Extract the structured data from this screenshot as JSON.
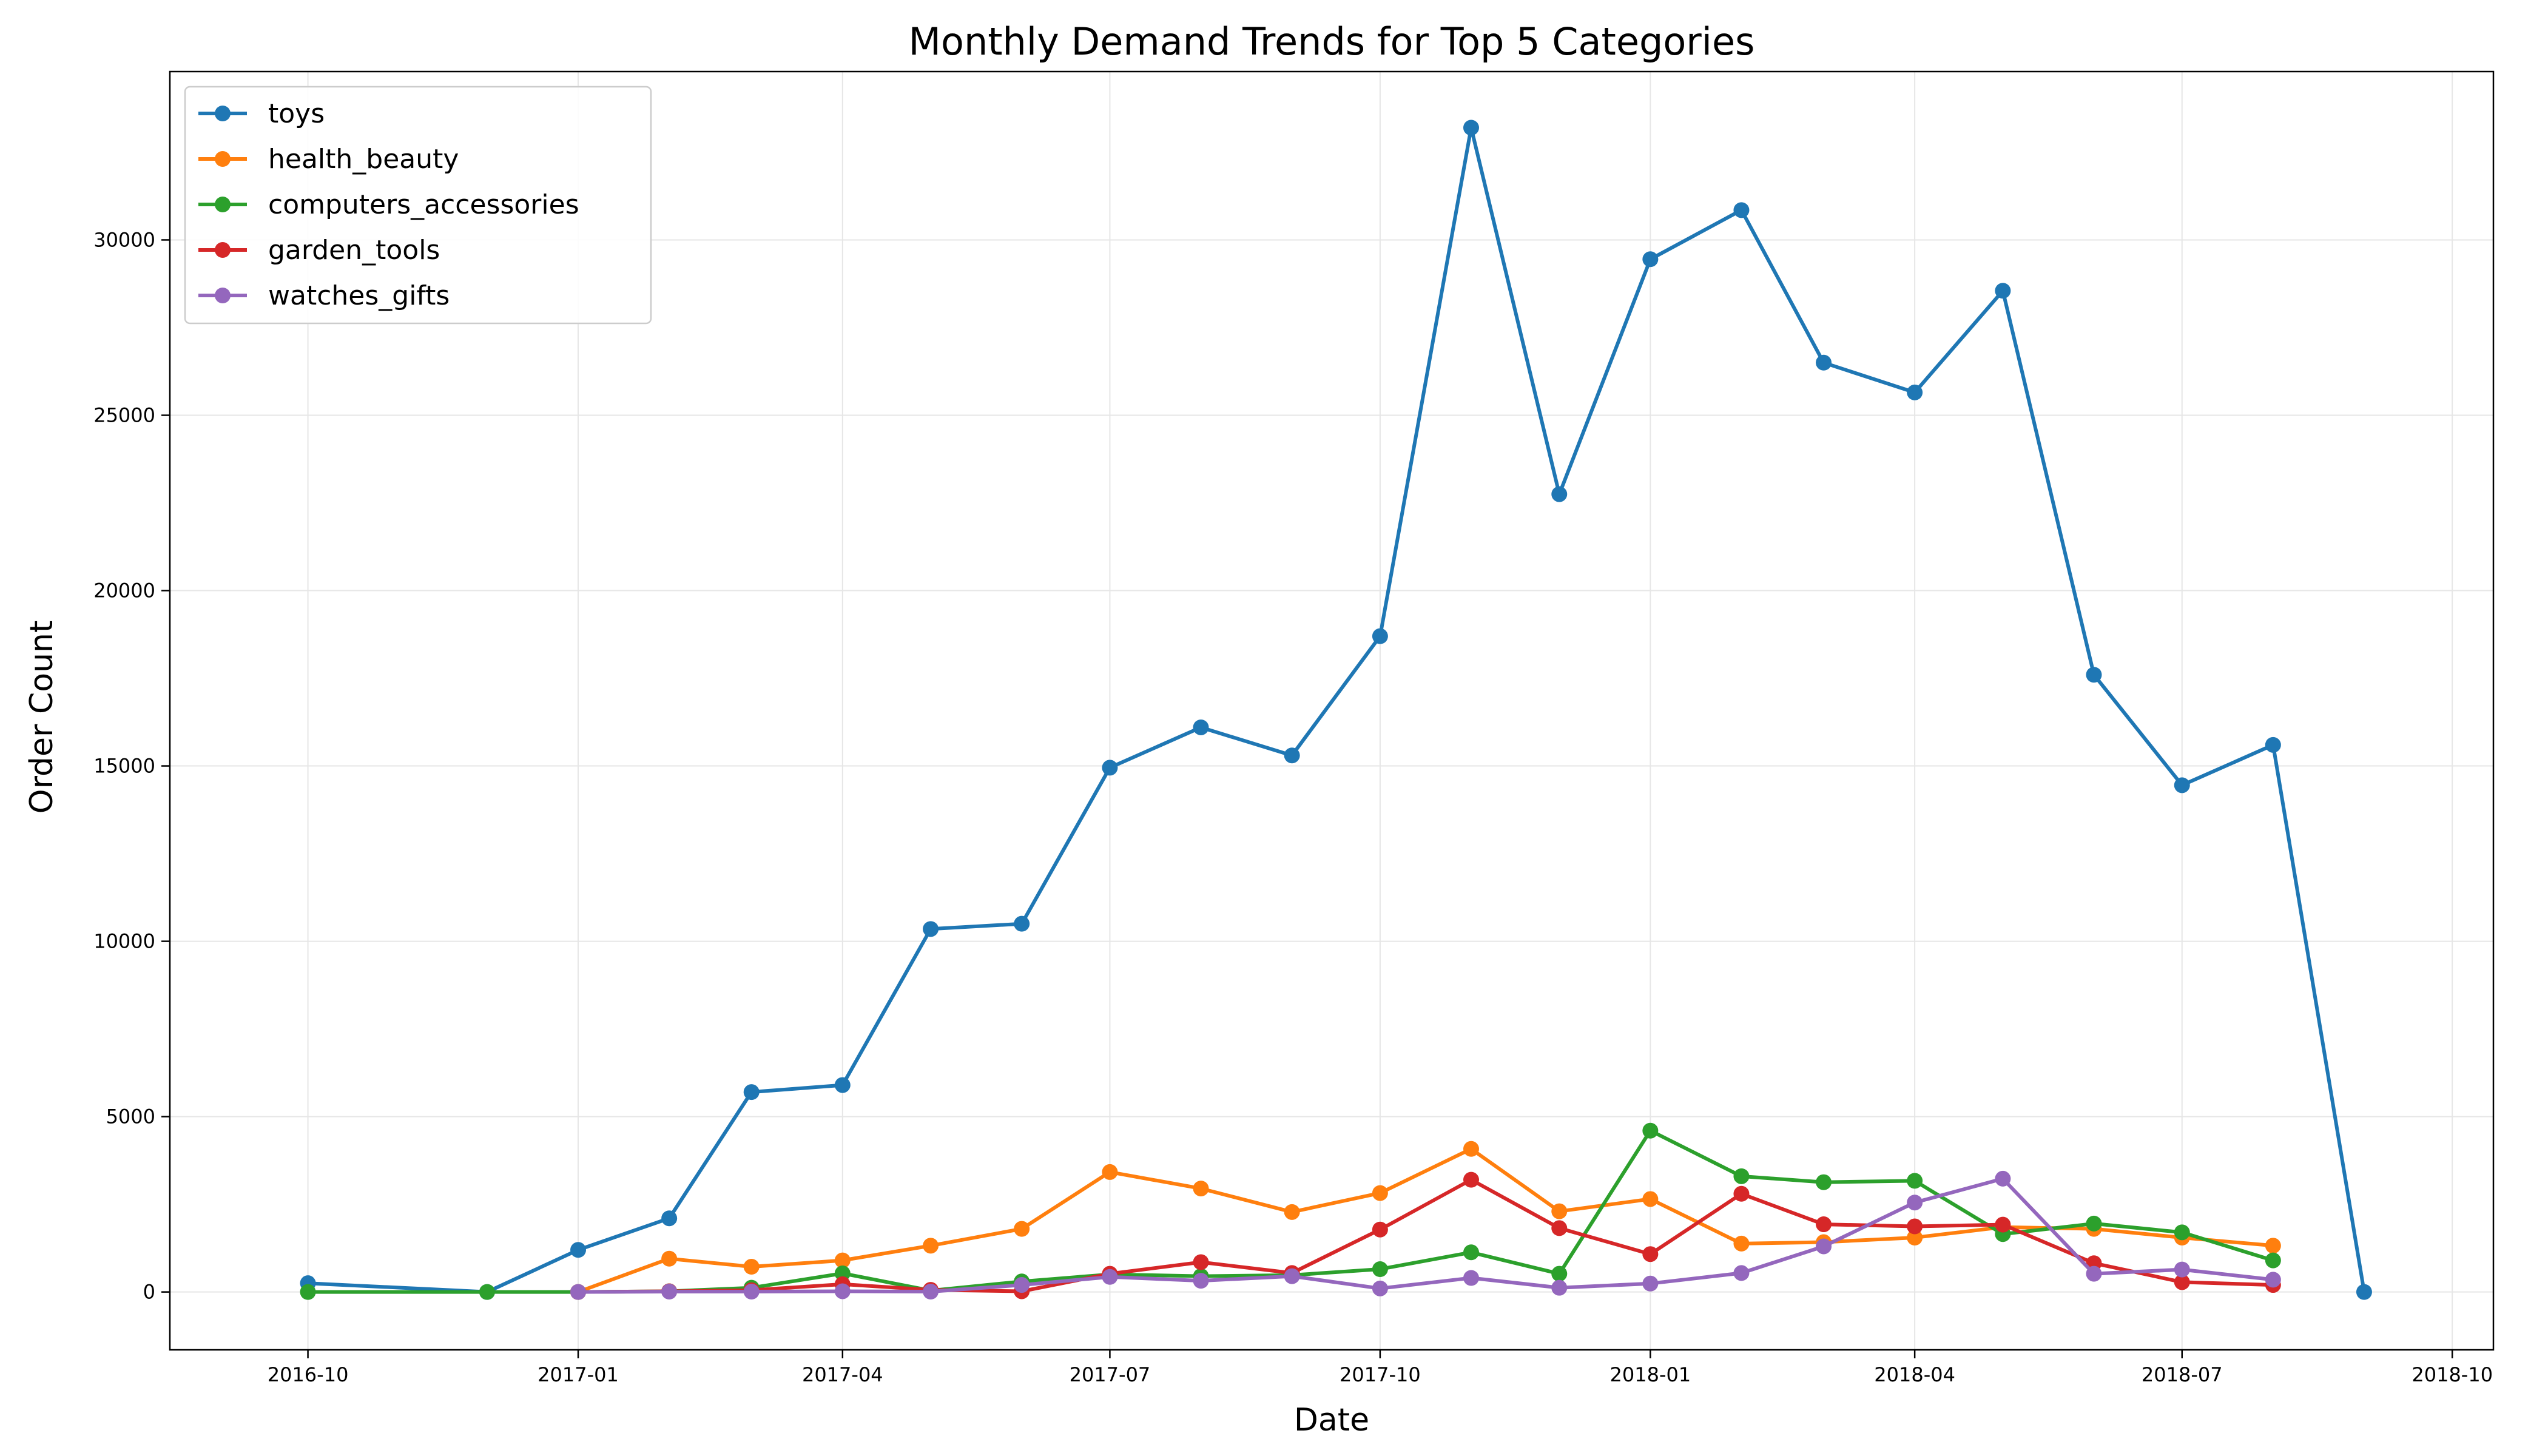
{
  "chart_data": {
    "type": "line",
    "title": "Monthly Demand Trends for Top 5 Categories",
    "xlabel": "Date",
    "ylabel": "Order Count",
    "x_ticks": [
      "2016-10",
      "2017-01",
      "2017-04",
      "2017-07",
      "2017-10",
      "2018-01",
      "2018-04",
      "2018-07",
      "2018-10"
    ],
    "y_ticks": [
      0,
      5000,
      10000,
      15000,
      20000,
      25000,
      30000
    ],
    "xlim": [
      "2016-08-15",
      "2018-10-15"
    ],
    "ylim": [
      -1650,
      34800
    ],
    "grid": true,
    "legend_position": "top-left",
    "colors": {
      "toys": "#1f77b4",
      "health_beauty": "#ff7f0e",
      "computers_accessories": "#2ca02c",
      "garden_tools": "#d62728",
      "watches_gifts": "#9467bd"
    },
    "series": [
      {
        "name": "toys",
        "color": "#1f77b4",
        "points": [
          [
            "2016-10-01",
            250
          ],
          [
            "2016-12-01",
            0
          ],
          [
            "2017-01-01",
            1200
          ],
          [
            "2017-02-01",
            2100
          ],
          [
            "2017-03-01",
            5700
          ],
          [
            "2017-04-01",
            5900
          ],
          [
            "2017-05-01",
            10350
          ],
          [
            "2017-06-01",
            10500
          ],
          [
            "2017-07-01",
            14950
          ],
          [
            "2017-08-01",
            16100
          ],
          [
            "2017-09-01",
            15300
          ],
          [
            "2017-10-01",
            18700
          ],
          [
            "2017-11-01",
            33200
          ],
          [
            "2017-12-01",
            22750
          ],
          [
            "2018-01-01",
            29450
          ],
          [
            "2018-02-01",
            30850
          ],
          [
            "2018-03-01",
            26500
          ],
          [
            "2018-04-01",
            25650
          ],
          [
            "2018-05-01",
            28550
          ],
          [
            "2018-06-01",
            17600
          ],
          [
            "2018-07-01",
            14450
          ],
          [
            "2018-08-01",
            15600
          ],
          [
            "2018-09-01",
            0
          ]
        ]
      },
      {
        "name": "health_beauty",
        "color": "#ff7f0e",
        "points": [
          [
            "2017-01-01",
            0
          ],
          [
            "2017-02-01",
            950
          ],
          [
            "2017-03-01",
            720
          ],
          [
            "2017-04-01",
            900
          ],
          [
            "2017-05-01",
            1320
          ],
          [
            "2017-06-01",
            1800
          ],
          [
            "2017-07-01",
            3420
          ],
          [
            "2017-08-01",
            2950
          ],
          [
            "2017-09-01",
            2280
          ],
          [
            "2017-10-01",
            2820
          ],
          [
            "2017-11-01",
            4080
          ],
          [
            "2017-12-01",
            2300
          ],
          [
            "2018-01-01",
            2650
          ],
          [
            "2018-02-01",
            1380
          ],
          [
            "2018-03-01",
            1420
          ],
          [
            "2018-04-01",
            1550
          ],
          [
            "2018-05-01",
            1850
          ],
          [
            "2018-06-01",
            1800
          ],
          [
            "2018-07-01",
            1550
          ],
          [
            "2018-08-01",
            1320
          ]
        ]
      },
      {
        "name": "computers_accessories",
        "color": "#2ca02c",
        "points": [
          [
            "2016-10-01",
            0
          ],
          [
            "2016-12-01",
            0
          ],
          [
            "2017-01-01",
            0
          ],
          [
            "2017-02-01",
            20
          ],
          [
            "2017-03-01",
            120
          ],
          [
            "2017-04-01",
            530
          ],
          [
            "2017-05-01",
            40
          ],
          [
            "2017-06-01",
            300
          ],
          [
            "2017-07-01",
            500
          ],
          [
            "2017-08-01",
            450
          ],
          [
            "2017-09-01",
            480
          ],
          [
            "2017-10-01",
            650
          ],
          [
            "2017-11-01",
            1130
          ],
          [
            "2017-12-01",
            520
          ],
          [
            "2018-01-01",
            4600
          ],
          [
            "2018-02-01",
            3300
          ],
          [
            "2018-03-01",
            3130
          ],
          [
            "2018-04-01",
            3170
          ],
          [
            "2018-05-01",
            1650
          ],
          [
            "2018-06-01",
            1950
          ],
          [
            "2018-07-01",
            1700
          ],
          [
            "2018-08-01",
            900
          ]
        ]
      },
      {
        "name": "garden_tools",
        "color": "#d62728",
        "points": [
          [
            "2017-01-01",
            0
          ],
          [
            "2017-02-01",
            20
          ],
          [
            "2017-03-01",
            50
          ],
          [
            "2017-04-01",
            220
          ],
          [
            "2017-05-01",
            60
          ],
          [
            "2017-06-01",
            20
          ],
          [
            "2017-07-01",
            520
          ],
          [
            "2017-08-01",
            850
          ],
          [
            "2017-09-01",
            540
          ],
          [
            "2017-10-01",
            1780
          ],
          [
            "2017-11-01",
            3200
          ],
          [
            "2017-12-01",
            1820
          ],
          [
            "2018-01-01",
            1080
          ],
          [
            "2018-02-01",
            2800
          ],
          [
            "2018-03-01",
            1930
          ],
          [
            "2018-04-01",
            1870
          ],
          [
            "2018-05-01",
            1920
          ],
          [
            "2018-06-01",
            820
          ],
          [
            "2018-07-01",
            280
          ],
          [
            "2018-08-01",
            200
          ]
        ]
      },
      {
        "name": "watches_gifts",
        "color": "#9467bd",
        "points": [
          [
            "2017-01-01",
            0
          ],
          [
            "2017-02-01",
            10
          ],
          [
            "2017-03-01",
            10
          ],
          [
            "2017-04-01",
            20
          ],
          [
            "2017-05-01",
            10
          ],
          [
            "2017-06-01",
            200
          ],
          [
            "2017-07-01",
            430
          ],
          [
            "2017-08-01",
            320
          ],
          [
            "2017-09-01",
            450
          ],
          [
            "2017-10-01",
            100
          ],
          [
            "2017-11-01",
            400
          ],
          [
            "2017-12-01",
            120
          ],
          [
            "2018-01-01",
            240
          ],
          [
            "2018-02-01",
            540
          ],
          [
            "2018-03-01",
            1300
          ],
          [
            "2018-04-01",
            2550
          ],
          [
            "2018-05-01",
            3230
          ],
          [
            "2018-06-01",
            520
          ],
          [
            "2018-07-01",
            640
          ],
          [
            "2018-08-01",
            350
          ]
        ]
      }
    ]
  }
}
